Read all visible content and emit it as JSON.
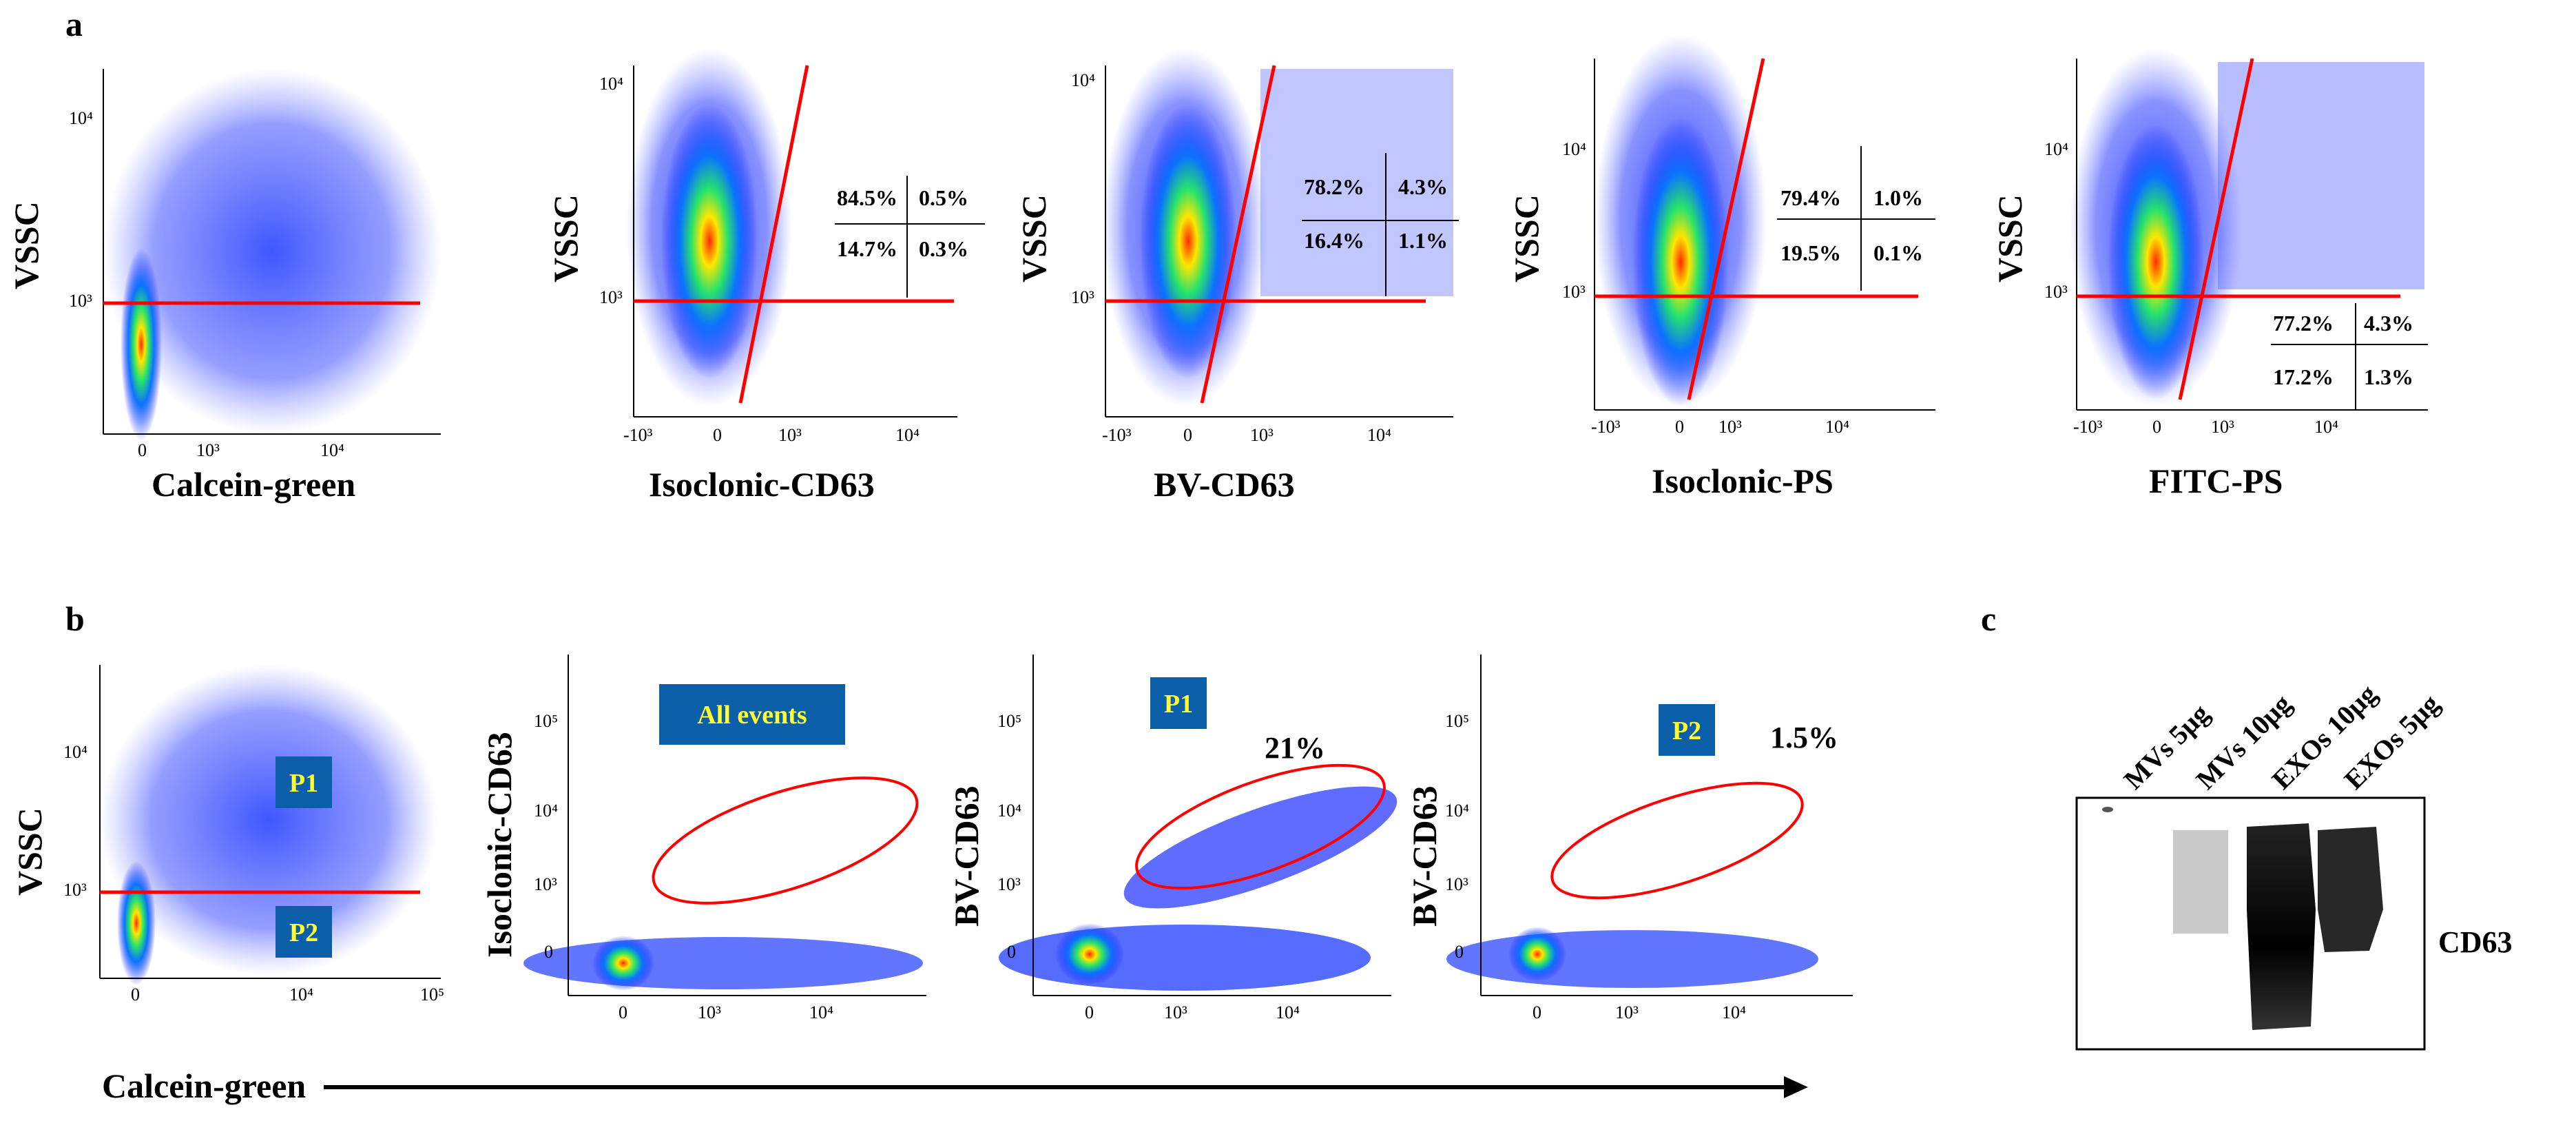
{
  "figure": {
    "panel_a_label": "a",
    "panel_b_label": "b",
    "panel_c_label": "c"
  },
  "panel_a": [
    {
      "ylabel": "VSSC",
      "xlabel": "Calcein-green",
      "yticks": [
        "10⁴",
        "10³"
      ],
      "xticks": [
        "0",
        "10³",
        "10⁴"
      ],
      "quadrants": []
    },
    {
      "ylabel": "VSSC",
      "xlabel": "Isoclonic-CD63",
      "yticks": [
        "10⁴",
        "10³"
      ],
      "xticks": [
        "-10³",
        "0",
        "10³",
        "10⁴"
      ],
      "quadrants": [
        "84.5%",
        "0.5%",
        "14.7%",
        "0.3%"
      ]
    },
    {
      "ylabel": "VSSC",
      "xlabel": "BV-CD63",
      "yticks": [
        "10⁴",
        "10³"
      ],
      "xticks": [
        "-10³",
        "0",
        "10³",
        "10⁴"
      ],
      "quadrants": [
        "78.2%",
        "4.3%",
        "16.4%",
        "1.1%"
      ]
    },
    {
      "ylabel": "VSSC",
      "xlabel": "Isoclonic-PS",
      "yticks": [
        "10⁴",
        "10³"
      ],
      "xticks": [
        "-10³",
        "0",
        "10³",
        "10⁴"
      ],
      "quadrants": [
        "79.4%",
        "1.0%",
        "19.5%",
        "0.1%"
      ]
    },
    {
      "ylabel": "VSSC",
      "xlabel": "FITC-PS",
      "yticks": [
        "10⁴",
        "10³"
      ],
      "xticks": [
        "-10³",
        "0",
        "10³",
        "10⁴"
      ],
      "quadrants": [
        "77.2%",
        "4.3%",
        "17.2%",
        "1.3%"
      ]
    }
  ],
  "panel_b": {
    "shared_xlabel": "Calcein-green",
    "plots": [
      {
        "ylabel": "VSSC",
        "gates": [
          "P1",
          "P2"
        ],
        "yticks": [
          "10⁴",
          "10³"
        ],
        "xticks": [
          "0",
          "10⁴",
          "10⁵"
        ]
      },
      {
        "ylabel": "Isoclonic-CD63",
        "box": "All events",
        "percent": "",
        "yticks": [
          "10⁵",
          "10⁴",
          "10³",
          "0"
        ],
        "xticks": [
          "0",
          "10³",
          "10⁴"
        ]
      },
      {
        "ylabel": "BV-CD63",
        "box": "P1",
        "percent": "21%",
        "yticks": [
          "10⁵",
          "10⁴",
          "10³",
          "0"
        ],
        "xticks": [
          "0",
          "10³",
          "10⁴"
        ]
      },
      {
        "ylabel": "BV-CD63",
        "box": "P2",
        "percent": "1.5%",
        "yticks": [
          "10⁵",
          "10⁴",
          "10³",
          "0"
        ],
        "xticks": [
          "0",
          "10³",
          "10⁴"
        ]
      }
    ]
  },
  "panel_c": {
    "lanes": [
      "MVs 5µg",
      "MVs 10µg",
      "EXOs 10µg",
      "EXOs 5µg"
    ],
    "band_label": "CD63"
  },
  "colors": {
    "gate_line": "#ff0000",
    "gate_box": "#0b5fa8",
    "gate_text": "#ffff33"
  }
}
